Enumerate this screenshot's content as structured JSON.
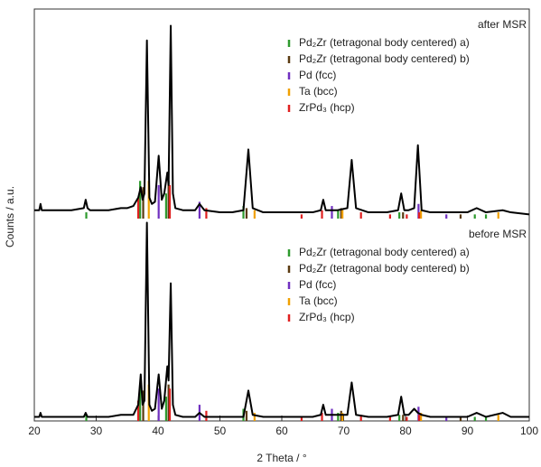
{
  "chart_data": {
    "type": "line",
    "xlabel": "2 Theta / °",
    "ylabel": "Counts / a.u.",
    "xlim": [
      20,
      100
    ],
    "xticks": [
      20,
      30,
      40,
      50,
      60,
      70,
      80,
      90,
      100
    ],
    "panels": [
      {
        "annotation": "after MSR",
        "ylim": [
          0,
          100
        ],
        "color": "#000000",
        "x": [
          20,
          20.8,
          21,
          21.2,
          22,
          24,
          26,
          28,
          28.3,
          28.6,
          29,
          30,
          32,
          34,
          35,
          36,
          36.8,
          37.2,
          37.5,
          37.8,
          38.2,
          38.6,
          39,
          39.5,
          40.1,
          40.6,
          41,
          41.5,
          41.7,
          42.05,
          42.4,
          42.8,
          44,
          46,
          46.7,
          47.5,
          50,
          52,
          53.8,
          54.6,
          55.3,
          57,
          60,
          63,
          65,
          66.3,
          66.7,
          67.1,
          69,
          70.6,
          71.3,
          72,
          74,
          77,
          78.8,
          79.3,
          79.8,
          80.5,
          81.4,
          82,
          82.6,
          84,
          86,
          88,
          90,
          91.5,
          93,
          95.7,
          97,
          100
        ],
        "values": [
          4,
          4,
          7,
          4,
          4,
          4,
          4,
          5,
          9,
          5,
          4,
          4,
          4,
          5,
          5,
          6,
          10,
          15,
          9,
          12,
          85,
          10,
          7,
          8,
          30,
          9,
          12,
          22,
          16,
          92,
          12,
          5,
          4,
          4,
          7,
          4,
          3,
          3,
          4,
          33,
          5,
          3,
          3,
          3,
          3,
          4,
          9,
          4,
          4,
          5,
          28,
          5,
          3,
          3,
          4,
          12,
          4,
          4,
          5,
          35,
          4,
          3,
          3,
          3,
          3,
          5,
          3,
          4,
          3,
          2
        ],
        "references": [
          {
            "name": "Pd₂Zr (tetragonal body centered) a)",
            "color": "#2e9a2e",
            "x": [
              28.4,
              37.1,
              41.3,
              53.8,
              69.1,
              79.0,
              91.2,
              93.0
            ],
            "values": [
              3,
              18,
              12,
              6,
              4,
              3,
              2,
              2
            ]
          },
          {
            "name": "Pd₂Zr (tetragonal body centered) b)",
            "color": "#5a3a10",
            "x": [
              37.6,
              41.7,
              54.3,
              69.6,
              79.6,
              88.9
            ],
            "values": [
              15,
              18,
              5,
              5,
              3,
              2
            ]
          },
          {
            "name": "Pd (fcc)",
            "color": "#7030c0",
            "x": [
              40.1,
              46.7,
              68.1,
              82.1,
              86.6
            ],
            "values": [
              16,
              8,
              6,
              7,
              2
            ]
          },
          {
            "name": "Ta (bcc)",
            "color": "#f0a000",
            "x": [
              38.5,
              55.6,
              69.8,
              82.5,
              95.0
            ],
            "values": [
              18,
              4,
              4,
              4,
              3
            ]
          },
          {
            "name": "ZrPd₃ (hcp)",
            "color": "#e02020",
            "x": [
              36.8,
              41.9,
              47.8,
              63.2,
              66.5,
              72.8,
              77.5,
              80.2,
              82.2
            ],
            "values": [
              10,
              16,
              5,
              2,
              4,
              3,
              2,
              2,
              3
            ]
          }
        ]
      },
      {
        "annotation": "before MSR",
        "ylim": [
          0,
          100
        ],
        "color": "#000000",
        "x": [
          20,
          20.8,
          21,
          21.2,
          22,
          24,
          26,
          28,
          28.3,
          28.6,
          29,
          30,
          32,
          34,
          35,
          36,
          36.8,
          37.2,
          37.5,
          37.8,
          38.2,
          38.6,
          39,
          39.5,
          40.1,
          40.6,
          41,
          41.5,
          41.7,
          42.05,
          42.4,
          42.8,
          44,
          46,
          46.7,
          47.5,
          50,
          52,
          53.8,
          54.6,
          55.3,
          57,
          60,
          63,
          65,
          66.3,
          66.7,
          67.1,
          69,
          70.6,
          71.3,
          72,
          74,
          77,
          78.8,
          79.3,
          79.8,
          80.5,
          81.4,
          82,
          82.6,
          84,
          86,
          88,
          90,
          91.5,
          93,
          95.7,
          97,
          100
        ],
        "values": [
          2,
          2,
          4,
          2,
          2,
          2,
          2,
          2,
          4,
          2,
          2,
          2,
          2,
          3,
          3,
          3,
          8,
          23,
          8,
          10,
          98,
          8,
          5,
          6,
          23,
          6,
          10,
          27,
          20,
          68,
          8,
          3,
          2,
          2,
          4,
          2,
          2,
          2,
          2,
          15,
          3,
          2,
          2,
          2,
          2,
          3,
          8,
          3,
          3,
          3,
          19,
          3,
          2,
          2,
          3,
          12,
          3,
          3,
          6,
          4,
          3,
          2,
          2,
          2,
          2,
          4,
          2,
          4,
          2,
          2
        ],
        "references": [
          {
            "name": "Pd₂Zr (tetragonal body centered) a)",
            "color": "#2e9a2e",
            "x": [
              28.4,
              37.1,
              41.3,
              53.8,
              69.1,
              79.0,
              91.2,
              93.0
            ],
            "values": [
              3,
              18,
              12,
              6,
              4,
              3,
              2,
              2
            ]
          },
          {
            "name": "Pd₂Zr (tetragonal body centered) b)",
            "color": "#5a3a10",
            "x": [
              37.6,
              41.7,
              54.3,
              69.6,
              79.6,
              88.9
            ],
            "values": [
              15,
              18,
              5,
              5,
              3,
              2
            ]
          },
          {
            "name": "Pd (fcc)",
            "color": "#7030c0",
            "x": [
              40.1,
              46.7,
              68.1,
              82.1,
              86.6
            ],
            "values": [
              16,
              8,
              6,
              7,
              2
            ]
          },
          {
            "name": "Ta (bcc)",
            "color": "#f0a000",
            "x": [
              38.5,
              55.6,
              69.8,
              82.5,
              95.0
            ],
            "values": [
              18,
              4,
              4,
              4,
              3
            ]
          },
          {
            "name": "ZrPd₃ (hcp)",
            "color": "#e02020",
            "x": [
              36.8,
              41.9,
              47.8,
              63.2,
              66.5,
              72.8,
              77.5,
              80.2,
              82.2
            ],
            "values": [
              10,
              16,
              5,
              2,
              4,
              3,
              2,
              2,
              3
            ]
          }
        ]
      }
    ]
  }
}
